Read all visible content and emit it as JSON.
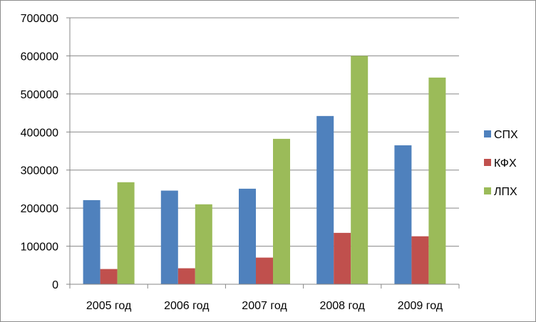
{
  "chart_data": {
    "type": "bar",
    "categories": [
      "2005 год",
      "2006 год",
      "2007 год",
      "2008 год",
      "2009 год"
    ],
    "series": [
      {
        "name": "СПХ",
        "color": "#4f81bd",
        "values": [
          221000,
          246000,
          251000,
          442000,
          365000
        ]
      },
      {
        "name": "КФХ",
        "color": "#c0504d",
        "values": [
          40000,
          42000,
          70000,
          135000,
          126000
        ]
      },
      {
        "name": "ЛПХ",
        "color": "#9bbb59",
        "values": [
          268000,
          210000,
          382000,
          600000,
          543000
        ]
      }
    ],
    "ylim": [
      0,
      700000
    ],
    "yticks": [
      0,
      100000,
      200000,
      300000,
      400000,
      500000,
      600000,
      700000
    ],
    "ytick_labels": [
      "0",
      "100000",
      "200000",
      "300000",
      "400000",
      "500000",
      "600000",
      "700000"
    ],
    "grid": true,
    "legend": "right"
  }
}
